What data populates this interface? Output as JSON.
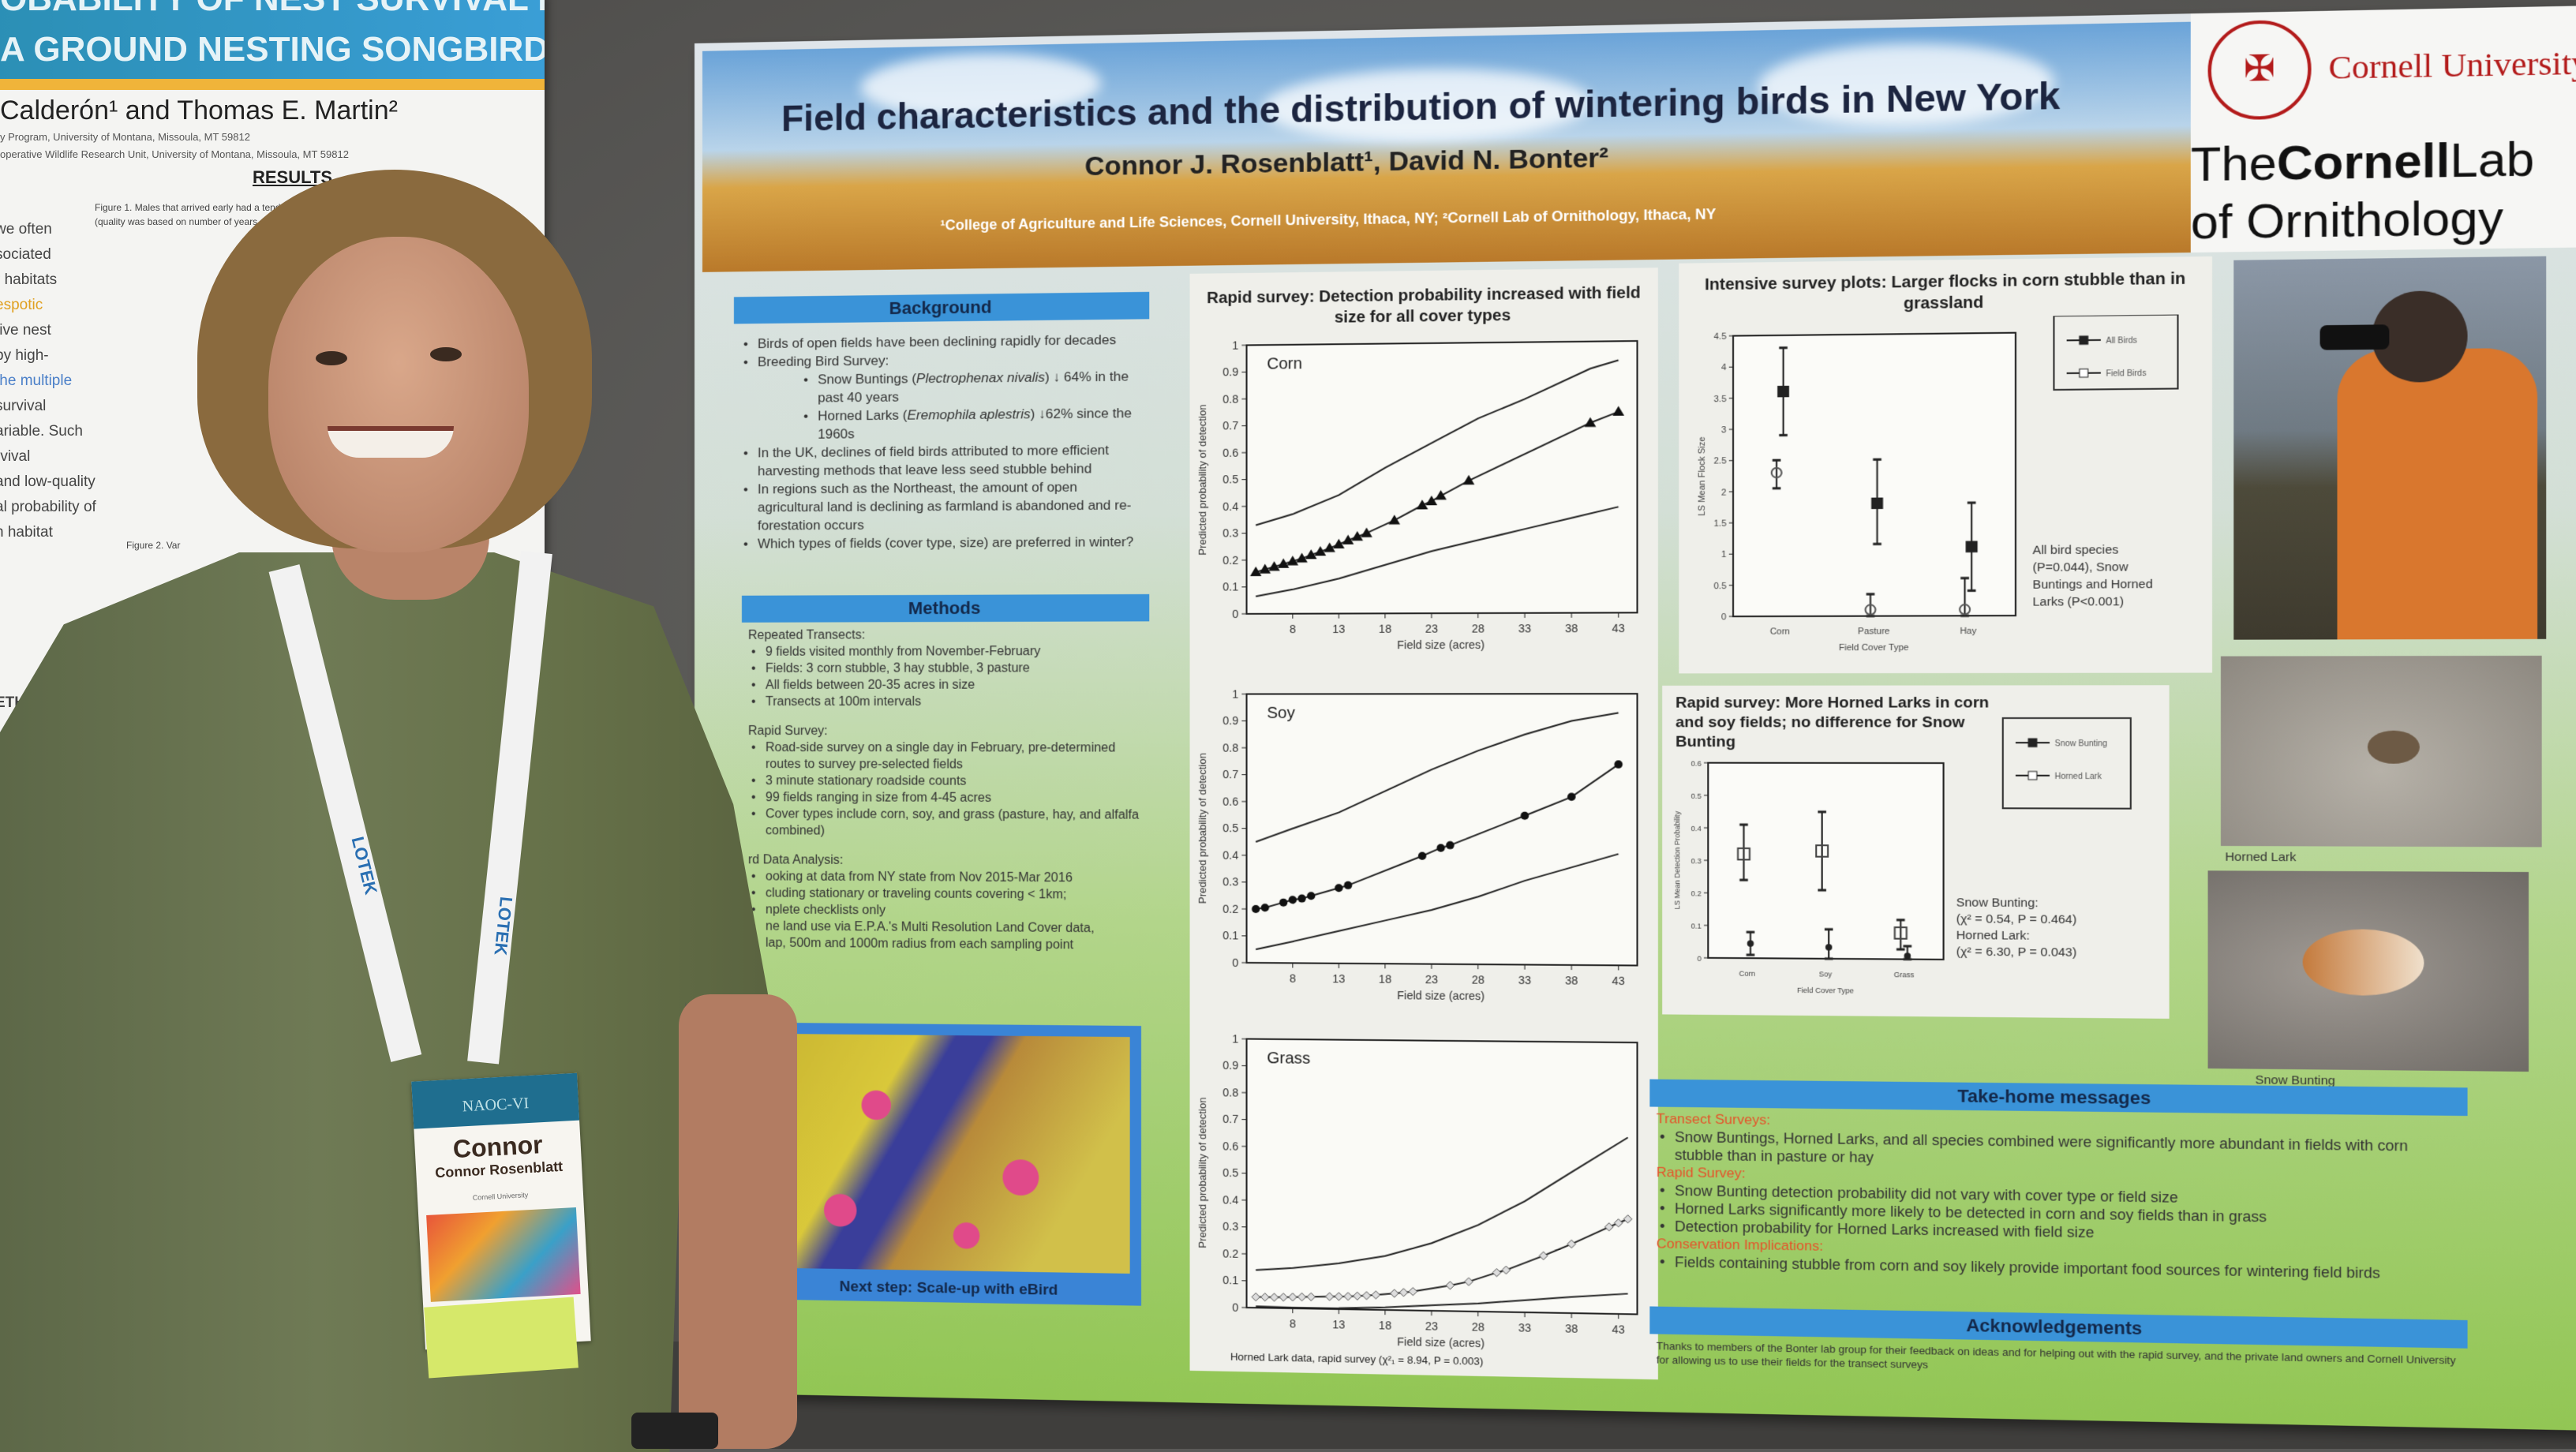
{
  "left_poster": {
    "title_line1": "OBABILITY OF NEST SURVIVAL EXPLAIN",
    "title_line2": "A GROUND NESTING SONGBIRD?",
    "authors": "Calderón¹ and Thomas E. Martin²",
    "affiliation1": "y Program, University of Montana, Missoula, MT 59812",
    "affiliation2": "operative Wildlife Research Unit, University of Montana, Missoula, MT 59812",
    "results_heading": "RESULTS",
    "figure1": "Figure 1. Males that arrived early had a tend",
    "figure1b": "(quality was based on number of years",
    "figure2": "Figure 2. Var",
    "methods_fragment": "ETHODS",
    "fragments": [
      "we often",
      "sociated",
      "r habitats",
      "espotic",
      "tive nest",
      "by high-",
      "the multiple",
      "survival",
      "ariable. Such",
      "rvival",
      "and low-quality",
      "al probability of",
      "n habitat"
    ]
  },
  "poster": {
    "title": "Field characteristics and the distribution of wintering birds in New York",
    "authors": "Connor J. Rosenblatt¹, David N. Bonter²",
    "affiliations": "¹College of Agriculture and Life Sciences, Cornell University, Ithaca, NY;  ²Cornell Lab of Ornithology, Ithaca, NY",
    "logo_cornell": "Cornell University",
    "logo_lab_the": "The",
    "logo_lab_cornell": "Cornell",
    "logo_lab_lab": "Lab",
    "logo_lab_of": "of Ornithology",
    "background": {
      "heading": "Background",
      "items": [
        {
          "text": "Birds of open fields have been declining rapidly for decades"
        },
        {
          "text": "Breeding Bird Survey:"
        },
        {
          "sub": true,
          "pre": "Snow Buntings (",
          "italic": "Plectrophenax nivalis",
          "post": ") ↓ 64% in the past 40 years"
        },
        {
          "sub": true,
          "pre": "Horned Larks (",
          "italic": "Eremophila aplestris",
          "post": ") ↓62% since the 1960s"
        },
        {
          "text": "In the UK, declines of field birds attributed to more efficient harvesting methods that leave less seed stubble behind"
        },
        {
          "text": "In regions such as the Northeast, the amount of open agricultural land is declining as farmland is abandoned and re-forestation occurs"
        },
        {
          "text": "Which types of fields (cover type, size) are preferred in winter?"
        }
      ]
    },
    "methods": {
      "heading": "Methods",
      "groups": [
        {
          "title": "Repeated Transects:",
          "items": [
            "9 fields visited monthly from November-February",
            "Fields: 3 corn stubble, 3 hay stubble, 3 pasture",
            "All fields between 20-35 acres in size",
            "Transects at 100m intervals"
          ]
        },
        {
          "title": "Rapid Survey:",
          "items": [
            "Road-side survey on a single day in February, pre-determined routes to survey pre-selected fields",
            "3 minute stationary roadside counts",
            "99 fields ranging in size from 4-45 acres",
            "Cover types include corn, soy, and grass (pasture, hay, and alfalfa combined)"
          ]
        },
        {
          "title": "rd Data Analysis:",
          "items": [
            "ooking at data from NY state from Nov 2015-Mar 2016",
            "cluding stationary or traveling counts covering < 1km;",
            "nplete checklists only",
            "ne land use via E.P.A.'s Multi Resolution Land Cover data,",
            "lap, 500m and 1000m radius from each sampling point"
          ]
        }
      ]
    },
    "map_caption": "Next step: Scale-up with eBird",
    "photo_labels": {
      "horned_lark": "Horned Lark",
      "snow_bunting": "Snow Bunting"
    },
    "takehome": {
      "heading": "Take-home messages",
      "groups": [
        {
          "title": "Transect Surveys:",
          "items": [
            "Snow Buntings, Horned Larks, and all species combined were significantly more abundant in fields with corn stubble than in pasture or hay"
          ]
        },
        {
          "title": "Rapid Survey:",
          "items": [
            "Snow Bunting detection probability did not vary with cover type or field size",
            "Horned Larks significantly more likely to be detected in corn and soy fields than in grass",
            "Detection probability for Horned Larks increased with field size"
          ]
        },
        {
          "title": "Conservation Implications:",
          "items": [
            "Fields containing stubble from corn and soy likely provide important food sources for wintering field birds"
          ]
        }
      ]
    },
    "acknowledgements": {
      "heading": "Acknowledgements",
      "text": "Thanks to members of the Bonter lab group for their feedback on ideas and for helping out with the rapid survey, and the private land owners and Cornell University for allowing us to use their fields for the transect surveys"
    }
  },
  "badge": {
    "event": "NAOC-VI",
    "first_name": "Connor",
    "full_name": "Connor Rosenblatt",
    "affiliation": "Cornell University"
  },
  "lanyard_text": "LOTEK",
  "chart_data": [
    {
      "type": "line",
      "title": "Rapid survey: Detection probability increased with field size for all cover types",
      "panel": "Corn",
      "xlabel": "Field size (acres)",
      "ylabel": "Predicted probability of detection",
      "xticks": [
        8,
        13,
        18,
        23,
        28,
        33,
        38,
        43
      ],
      "yticks": [
        0,
        0.1,
        0.2,
        0.3,
        0.4,
        0.5,
        0.6,
        0.7,
        0.8,
        0.9,
        1
      ],
      "xlim": [
        3,
        45
      ],
      "ylim": [
        0,
        1
      ],
      "marker": "triangle",
      "x": [
        4,
        5,
        6,
        7,
        8,
        9,
        10,
        11,
        12,
        13,
        14,
        15,
        16,
        19,
        22,
        23,
        24,
        27,
        40,
        43
      ],
      "y": [
        0.155,
        0.165,
        0.175,
        0.185,
        0.195,
        0.205,
        0.218,
        0.23,
        0.243,
        0.257,
        0.272,
        0.285,
        0.298,
        0.345,
        0.4,
        0.415,
        0.435,
        0.49,
        0.7,
        0.74
      ],
      "upper": [
        [
          4,
          0.33
        ],
        [
          8,
          0.37
        ],
        [
          13,
          0.44
        ],
        [
          18,
          0.54
        ],
        [
          23,
          0.63
        ],
        [
          28,
          0.72
        ],
        [
          33,
          0.79
        ],
        [
          40,
          0.9
        ],
        [
          43,
          0.93
        ]
      ],
      "lower": [
        [
          4,
          0.065
        ],
        [
          8,
          0.09
        ],
        [
          13,
          0.13
        ],
        [
          18,
          0.18
        ],
        [
          23,
          0.23
        ],
        [
          28,
          0.27
        ],
        [
          33,
          0.31
        ],
        [
          38,
          0.35
        ],
        [
          43,
          0.39
        ]
      ]
    },
    {
      "type": "line",
      "panel": "Soy",
      "xlabel": "Field size (acres)",
      "ylabel": "Predicted probability of detection",
      "xticks": [
        8,
        13,
        18,
        23,
        28,
        33,
        38,
        43
      ],
      "yticks": [
        0,
        0.1,
        0.2,
        0.3,
        0.4,
        0.5,
        0.6,
        0.7,
        0.8,
        0.9,
        1
      ],
      "xlim": [
        3,
        45
      ],
      "ylim": [
        0,
        1
      ],
      "marker": "circle",
      "x": [
        4,
        5,
        7,
        8,
        9,
        10,
        13,
        14,
        22,
        24,
        25,
        33,
        38,
        43
      ],
      "y": [
        0.2,
        0.205,
        0.225,
        0.235,
        0.24,
        0.25,
        0.28,
        0.29,
        0.4,
        0.43,
        0.44,
        0.55,
        0.62,
        0.74
      ],
      "upper": [
        [
          4,
          0.45
        ],
        [
          8,
          0.5
        ],
        [
          13,
          0.56
        ],
        [
          18,
          0.64
        ],
        [
          23,
          0.72
        ],
        [
          28,
          0.79
        ],
        [
          33,
          0.85
        ],
        [
          38,
          0.9
        ],
        [
          43,
          0.93
        ]
      ],
      "lower": [
        [
          4,
          0.05
        ],
        [
          8,
          0.08
        ],
        [
          13,
          0.12
        ],
        [
          18,
          0.16
        ],
        [
          23,
          0.2
        ],
        [
          28,
          0.25
        ],
        [
          33,
          0.31
        ],
        [
          38,
          0.36
        ],
        [
          43,
          0.41
        ]
      ]
    },
    {
      "type": "line",
      "panel": "Grass",
      "xlabel": "Field size (acres)",
      "ylabel": "Predicted probability of detection",
      "note": "Horned Lark data, rapid survey (χ²₁ = 8.94, P = 0.003)",
      "xticks": [
        8,
        13,
        18,
        23,
        28,
        33,
        38,
        43
      ],
      "yticks": [
        0,
        0.1,
        0.2,
        0.3,
        0.4,
        0.5,
        0.6,
        0.7,
        0.8,
        0.9,
        1
      ],
      "xlim": [
        3,
        45
      ],
      "ylim": [
        0,
        1
      ],
      "marker": "diamond",
      "x": [
        4,
        5,
        6,
        7,
        8,
        9,
        10,
        12,
        13,
        14,
        15,
        16,
        17,
        19,
        20,
        21,
        25,
        27,
        30,
        31,
        35,
        38,
        42,
        43,
        44
      ],
      "y": [
        0.04,
        0.04,
        0.04,
        0.041,
        0.042,
        0.043,
        0.044,
        0.046,
        0.047,
        0.048,
        0.05,
        0.052,
        0.055,
        0.062,
        0.066,
        0.07,
        0.095,
        0.11,
        0.145,
        0.155,
        0.21,
        0.255,
        0.32,
        0.335,
        0.35
      ],
      "upper": [
        [
          4,
          0.14
        ],
        [
          8,
          0.15
        ],
        [
          13,
          0.17
        ],
        [
          18,
          0.2
        ],
        [
          23,
          0.25
        ],
        [
          28,
          0.32
        ],
        [
          33,
          0.41
        ],
        [
          38,
          0.52
        ],
        [
          44,
          0.65
        ]
      ],
      "lower": [
        [
          4,
          0.005
        ],
        [
          8,
          0.003
        ],
        [
          13,
          0.004
        ],
        [
          18,
          0.01
        ],
        [
          23,
          0.02
        ],
        [
          28,
          0.03
        ],
        [
          33,
          0.045
        ],
        [
          38,
          0.06
        ],
        [
          44,
          0.075
        ]
      ]
    },
    {
      "type": "scatter",
      "title": "Intensive survey plots: Larger flocks in corn stubble than in grassland",
      "xlabel": "Field Cover Type",
      "ylabel": "LS Mean Flock Size",
      "categories": [
        "Corn",
        "Pasture",
        "Hay"
      ],
      "yticks": [
        0,
        0.5,
        1,
        1.5,
        2,
        2.5,
        3,
        3.5,
        4,
        4.5
      ],
      "ylim": [
        0,
        4.5
      ],
      "legend": "top-right",
      "series": [
        {
          "name": "All Birds",
          "marker": "square",
          "values": [
            3.6,
            1.8,
            1.1
          ],
          "ci": [
            [
              2.9,
              4.3
            ],
            [
              1.15,
              2.5
            ],
            [
              0.4,
              1.8
            ]
          ]
        },
        {
          "name": "Field Birds",
          "marker": "circle-open",
          "values": [
            2.3,
            0.1,
            0.1
          ],
          "ci": [
            [
              2.05,
              2.5
            ],
            [
              0,
              0.35
            ],
            [
              0,
              0.6
            ]
          ]
        }
      ],
      "annotation": "All bird species (P=0.044), Snow Buntings and Horned Larks (P<0.001)"
    },
    {
      "type": "scatter",
      "title": "Rapid survey: More Horned Larks in corn and soy fields; no difference for Snow Bunting",
      "xlabel": "Field Cover Type",
      "ylabel": "LS Mean Detection Probability",
      "categories": [
        "Corn",
        "Soy",
        "Grass"
      ],
      "yticks": [
        0,
        0.1,
        0.2,
        0.3,
        0.4,
        0.5,
        0.6
      ],
      "ylim": [
        0,
        0.6
      ],
      "legend": "top-right",
      "series": [
        {
          "name": "Snow Bunting",
          "marker": "dot",
          "values": [
            0.045,
            0.035,
            0.01
          ],
          "ci": [
            [
              0.01,
              0.08
            ],
            [
              0,
              0.09
            ],
            [
              0,
              0.04
            ]
          ]
        },
        {
          "name": "Horned Lark",
          "marker": "square-open",
          "values": [
            0.32,
            0.33,
            0.08
          ],
          "ci": [
            [
              0.24,
              0.41
            ],
            [
              0.21,
              0.45
            ],
            [
              0.03,
              0.12
            ]
          ]
        }
      ],
      "annotation_lines": [
        "Snow Bunting:",
        "(χ² = 0.54, P = 0.464)",
        "Horned Lark:",
        "(χ² = 6.30, P = 0.043)"
      ]
    }
  ]
}
